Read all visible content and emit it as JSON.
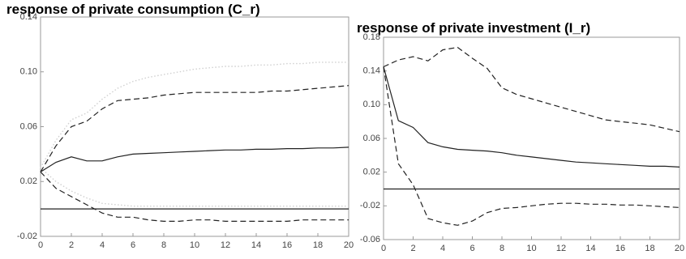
{
  "chart_data": [
    {
      "type": "line",
      "title": "response of private consumption (C_r)",
      "x": [
        0,
        1,
        2,
        3,
        4,
        5,
        6,
        7,
        8,
        9,
        10,
        11,
        12,
        13,
        14,
        15,
        16,
        17,
        18,
        19,
        20
      ],
      "xlim": [
        0,
        20
      ],
      "xticks": [
        0,
        2,
        4,
        6,
        8,
        10,
        12,
        14,
        16,
        18,
        20
      ],
      "ylim": [
        -0.02,
        0.14
      ],
      "yticks": [
        -0.02,
        0.02,
        0.06,
        {
          "value": 0.1,
          "label": "0.10"
        },
        0.14
      ],
      "reference_line": 0,
      "series": [
        {
          "color": "#d0d0d0",
          "style": "dotted",
          "values": [
            0.03,
            0.05,
            0.065,
            0.07,
            0.08,
            0.088,
            0.093,
            0.096,
            0.098,
            0.1,
            0.102,
            0.103,
            0.104,
            0.104,
            0.105,
            0.105,
            0.106,
            0.106,
            0.107,
            0.107,
            0.107
          ]
        },
        {
          "color": "#d0d0d0",
          "style": "dotted",
          "values": [
            0.03,
            0.02,
            0.013,
            0.008,
            0.004,
            0.003,
            0.002,
            0.002,
            0.002,
            0.002,
            0.002,
            0.002,
            0.002,
            0.002,
            0.002,
            0.002,
            0.002,
            0.002,
            0.002,
            0.002,
            0.002
          ]
        },
        {
          "color": "#222222",
          "style": "solid",
          "values": [
            0.027,
            0.034,
            0.038,
            0.035,
            0.035,
            0.038,
            0.04,
            0.0405,
            0.041,
            0.0415,
            0.042,
            0.0425,
            0.043,
            0.043,
            0.0435,
            0.0435,
            0.044,
            0.044,
            0.0445,
            0.0445,
            0.045
          ]
        },
        {
          "color": "#222222",
          "style": "dashed",
          "values": [
            0.027,
            0.046,
            0.06,
            0.064,
            0.073,
            0.079,
            0.08,
            0.081,
            0.083,
            0.084,
            0.085,
            0.085,
            0.085,
            0.085,
            0.085,
            0.086,
            0.086,
            0.087,
            0.088,
            0.089,
            0.09
          ]
        },
        {
          "color": "#222222",
          "style": "dashed",
          "values": [
            0.027,
            0.015,
            0.009,
            0.003,
            -0.003,
            -0.006,
            -0.006,
            -0.008,
            -0.009,
            -0.009,
            -0.008,
            -0.008,
            -0.009,
            -0.009,
            -0.009,
            -0.009,
            -0.009,
            -0.008,
            -0.008,
            -0.008,
            -0.008
          ]
        }
      ]
    },
    {
      "type": "line",
      "title": "response of private investment (I_r)",
      "x": [
        0,
        1,
        2,
        3,
        4,
        5,
        6,
        7,
        8,
        9,
        10,
        11,
        12,
        13,
        14,
        15,
        16,
        17,
        18,
        19,
        20
      ],
      "xlim": [
        0,
        20
      ],
      "xticks": [
        0,
        2,
        4,
        6,
        8,
        10,
        12,
        14,
        16,
        18,
        20
      ],
      "ylim": [
        -0.06,
        0.18
      ],
      "yticks": [
        -0.06,
        -0.02,
        0.02,
        0.06,
        {
          "value": 0.1,
          "label": "0.10"
        },
        0.14,
        0.18
      ],
      "reference_line": 0,
      "series": [
        {
          "color": "#222222",
          "style": "solid",
          "values": [
            0.145,
            0.081,
            0.073,
            0.055,
            0.05,
            0.047,
            0.046,
            0.045,
            0.043,
            0.04,
            0.038,
            0.036,
            0.034,
            0.032,
            0.031,
            0.03,
            0.029,
            0.028,
            0.027,
            0.027,
            0.026
          ]
        },
        {
          "color": "#222222",
          "style": "dashed",
          "values": [
            0.145,
            0.153,
            0.157,
            0.152,
            0.165,
            0.168,
            0.155,
            0.143,
            0.12,
            0.112,
            0.107,
            0.102,
            0.097,
            0.092,
            0.087,
            0.082,
            0.08,
            0.078,
            0.076,
            0.072,
            0.068
          ]
        },
        {
          "color": "#222222",
          "style": "dashed",
          "values": [
            0.145,
            0.03,
            0.005,
            -0.035,
            -0.04,
            -0.043,
            -0.038,
            -0.028,
            -0.023,
            -0.022,
            -0.02,
            -0.018,
            -0.017,
            -0.017,
            -0.018,
            -0.018,
            -0.019,
            -0.019,
            -0.02,
            -0.021,
            -0.022
          ]
        }
      ]
    }
  ]
}
